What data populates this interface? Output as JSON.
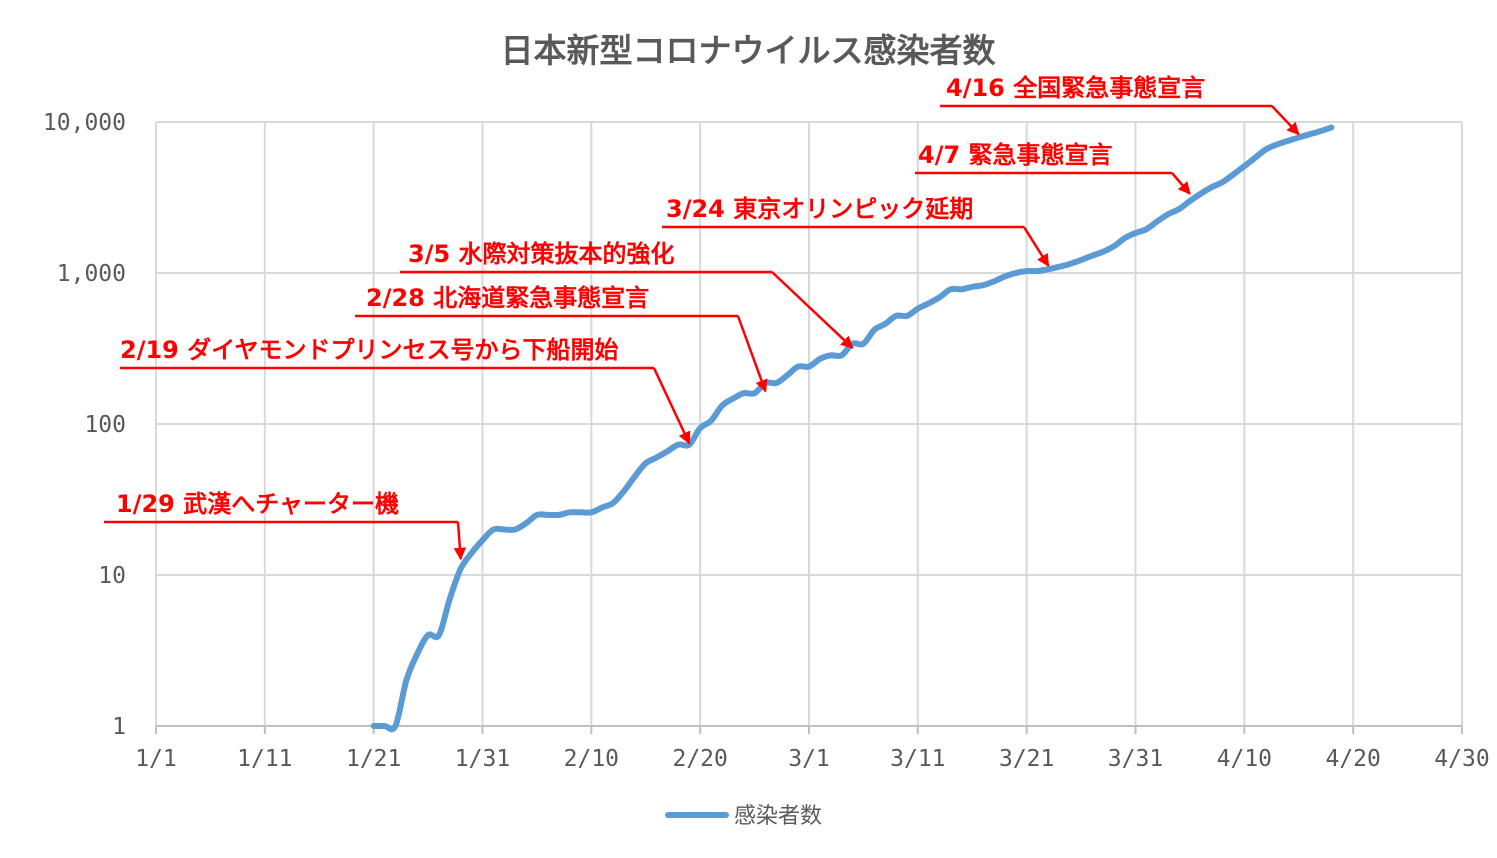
{
  "chart_data": {
    "type": "line",
    "title": "日本新型コロナウイルス感染者数",
    "y_scale": "log",
    "ylim": [
      1,
      10000
    ],
    "xlim": [
      "2020-01-01",
      "2020-04-30"
    ],
    "y_ticks": [
      "1",
      "10",
      "100",
      "1,000",
      "10,000"
    ],
    "x_ticks": [
      "1/1",
      "1/11",
      "1/21",
      "1/31",
      "2/10",
      "2/20",
      "3/1",
      "3/11",
      "3/21",
      "3/31",
      "4/10",
      "4/20",
      "4/30"
    ],
    "grid": true,
    "legend_position": "bottom",
    "colors": {
      "series": "#5b9bd5",
      "annotation": "#ff0000",
      "text": "#595959"
    },
    "series": [
      {
        "name": "感染者数",
        "x": [
          "2020-01-21",
          "2020-01-22",
          "2020-01-23",
          "2020-01-24",
          "2020-01-25",
          "2020-01-26",
          "2020-01-27",
          "2020-01-28",
          "2020-01-29",
          "2020-01-30",
          "2020-01-31",
          "2020-02-01",
          "2020-02-02",
          "2020-02-03",
          "2020-02-04",
          "2020-02-05",
          "2020-02-06",
          "2020-02-07",
          "2020-02-08",
          "2020-02-09",
          "2020-02-10",
          "2020-02-11",
          "2020-02-12",
          "2020-02-13",
          "2020-02-14",
          "2020-02-15",
          "2020-02-16",
          "2020-02-17",
          "2020-02-18",
          "2020-02-19",
          "2020-02-20",
          "2020-02-21",
          "2020-02-22",
          "2020-02-23",
          "2020-02-24",
          "2020-02-25",
          "2020-02-26",
          "2020-02-27",
          "2020-02-28",
          "2020-02-29",
          "2020-03-01",
          "2020-03-02",
          "2020-03-03",
          "2020-03-04",
          "2020-03-05",
          "2020-03-06",
          "2020-03-07",
          "2020-03-08",
          "2020-03-09",
          "2020-03-10",
          "2020-03-11",
          "2020-03-12",
          "2020-03-13",
          "2020-03-14",
          "2020-03-15",
          "2020-03-16",
          "2020-03-17",
          "2020-03-18",
          "2020-03-19",
          "2020-03-20",
          "2020-03-21",
          "2020-03-22",
          "2020-03-23",
          "2020-03-24",
          "2020-03-25",
          "2020-03-26",
          "2020-03-27",
          "2020-03-28",
          "2020-03-29",
          "2020-03-30",
          "2020-03-31",
          "2020-04-01",
          "2020-04-02",
          "2020-04-03",
          "2020-04-04",
          "2020-04-05",
          "2020-04-06",
          "2020-04-07",
          "2020-04-08",
          "2020-04-09",
          "2020-04-10",
          "2020-04-11",
          "2020-04-12",
          "2020-04-13",
          "2020-04-14",
          "2020-04-15",
          "2020-04-16",
          "2020-04-17",
          "2020-04-18"
        ],
        "values": [
          1,
          1,
          1,
          2,
          3,
          4,
          4,
          7,
          11,
          14,
          17,
          20,
          20,
          20,
          22,
          25,
          25,
          25,
          26,
          26,
          26,
          28,
          30,
          36,
          45,
          55,
          60,
          66,
          73,
          73,
          94,
          105,
          132,
          147,
          160,
          160,
          187,
          187,
          210,
          240,
          240,
          270,
          285,
          285,
          340,
          340,
          420,
          460,
          520,
          520,
          580,
          630,
          690,
          780,
          780,
          810,
          830,
          880,
          950,
          1000,
          1030,
          1030,
          1060,
          1100,
          1150,
          1220,
          1300,
          1380,
          1500,
          1700,
          1840,
          1950,
          2200,
          2450,
          2650,
          3000,
          3350,
          3700,
          4000,
          4500,
          5100,
          5800,
          6600,
          7100,
          7500,
          7900,
          8300,
          8700,
          9200
        ]
      }
    ],
    "annotations": [
      {
        "label": "1/29  武漢へチャーター機",
        "date": "2020-01-29",
        "value": 12
      },
      {
        "label": "2/19 ダイヤモンドプリンセス号から下船開始",
        "date": "2020-02-19",
        "value": 70
      },
      {
        "label": "2/28  北海道緊急事態宣言",
        "date": "2020-02-26",
        "value": 155
      },
      {
        "label": "3/5  水際対策抜本的強化",
        "date": "2020-03-05",
        "value": 300
      },
      {
        "label": "3/24  東京オリンピック延期",
        "date": "2020-03-23",
        "value": 1050
      },
      {
        "label": "4/7  緊急事態宣言",
        "date": "2020-04-05",
        "value": 3150
      },
      {
        "label": "4/16  全国緊急事態宣言",
        "date": "2020-04-15",
        "value": 7800
      }
    ]
  }
}
